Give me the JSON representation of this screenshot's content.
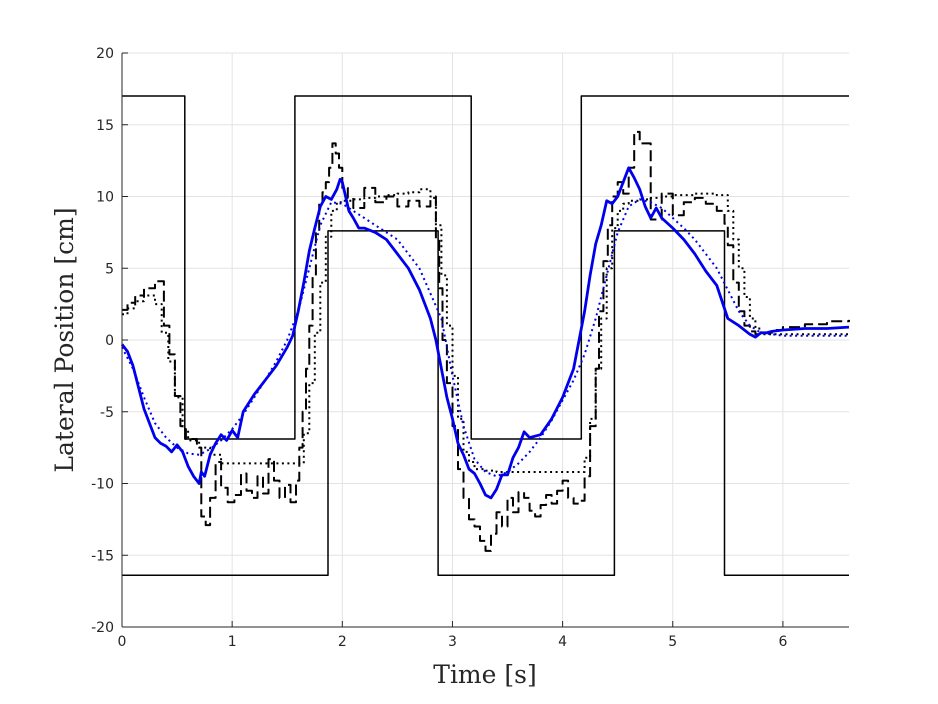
{
  "chart_data": {
    "type": "line",
    "title": "",
    "xlabel": "Time [s]",
    "ylabel": "Lateral Position [cm]",
    "xlim": [
      0,
      6.6
    ],
    "ylim": [
      -20,
      20
    ],
    "xticks": [
      0,
      1,
      2,
      3,
      4,
      5,
      6
    ],
    "yticks": [
      -20,
      -15,
      -10,
      -5,
      0,
      5,
      10,
      15,
      20
    ],
    "xtick_labels": [
      "0",
      "1",
      "2",
      "3",
      "4",
      "5",
      "6"
    ],
    "ytick_labels": [
      "-20",
      "-15",
      "-10",
      "-5",
      "0",
      "5",
      "10",
      "15",
      "20"
    ],
    "grid": true,
    "legend": "none",
    "series": [
      {
        "style": "solid",
        "color": "#000000",
        "width": 1.5,
        "step": true,
        "x": [
          0,
          0.57,
          0.57,
          1.57,
          1.57,
          3.17,
          3.17,
          4.17,
          4.17,
          6.6
        ],
        "y": [
          17,
          17,
          -6.9,
          -6.9,
          17,
          17,
          -6.9,
          -6.9,
          17,
          17
        ]
      },
      {
        "style": "solid",
        "color": "#000000",
        "width": 1.5,
        "step": true,
        "x": [
          0,
          1.87,
          1.87,
          2.87,
          2.87,
          4.47,
          4.47,
          5.47,
          5.47,
          6.6
        ],
        "y": [
          -16.4,
          -16.4,
          7.6,
          7.6,
          -16.4,
          -16.4,
          7.6,
          7.6,
          -16.4,
          -16.4
        ]
      },
      {
        "style": "dashed",
        "color": "#000000",
        "width": 2,
        "step": true,
        "x": [
          0,
          0.05,
          0.12,
          0.2,
          0.3,
          0.38,
          0.43,
          0.48,
          0.53,
          0.58,
          0.63,
          0.68,
          0.72,
          0.76,
          0.8,
          0.85,
          0.9,
          0.96,
          1.02,
          1.08,
          1.13,
          1.18,
          1.23,
          1.28,
          1.33,
          1.38,
          1.43,
          1.48,
          1.53,
          1.58,
          1.61,
          1.64,
          1.67,
          1.7,
          1.73,
          1.76,
          1.79,
          1.82,
          1.85,
          1.88,
          1.91,
          1.94,
          1.97,
          2.0,
          2.05,
          2.1,
          2.2,
          2.3,
          2.4,
          2.5,
          2.6,
          2.7,
          2.8,
          2.85,
          2.88,
          2.91,
          2.95,
          3.0,
          3.05,
          3.1,
          3.15,
          3.2,
          3.25,
          3.3,
          3.35,
          3.4,
          3.45,
          3.5,
          3.55,
          3.6,
          3.65,
          3.7,
          3.75,
          3.8,
          3.85,
          3.9,
          3.95,
          4.0,
          4.05,
          4.1,
          4.15,
          4.2,
          4.25,
          4.3,
          4.33,
          4.37,
          4.41,
          4.45,
          4.5,
          4.55,
          4.6,
          4.65,
          4.7,
          4.8,
          4.9,
          5.0,
          5.1,
          5.2,
          5.3,
          5.4,
          5.47,
          5.5,
          5.55,
          5.6,
          5.65,
          5.7,
          5.75,
          5.8,
          5.9,
          6.0,
          6.2,
          6.4,
          6.6
        ],
        "y": [
          2.1,
          2.6,
          3.1,
          3.6,
          4.1,
          1.0,
          -1.0,
          -3.9,
          -6.0,
          -6.9,
          -6.9,
          -7.5,
          -12.3,
          -12.9,
          -11.0,
          -8.5,
          -10.3,
          -11.3,
          -10.8,
          -9.3,
          -10.5,
          -11.0,
          -9.5,
          -10.7,
          -8.3,
          -9.8,
          -11.0,
          -10.1,
          -11.3,
          -9.8,
          -7.5,
          -5.0,
          -2.0,
          1.0,
          4.5,
          7.5,
          9.5,
          10.3,
          11.0,
          12.0,
          13.7,
          13.0,
          12.0,
          10.6,
          9.9,
          9.2,
          10.6,
          9.6,
          10.0,
          9.3,
          9.7,
          9.3,
          9.9,
          7.0,
          3.6,
          0.0,
          -3.0,
          -6.0,
          -9.0,
          -11.0,
          -12.5,
          -13.0,
          -14.0,
          -14.7,
          -13.5,
          -12.0,
          -13.0,
          -11.0,
          -12.0,
          -10.6,
          -11.0,
          -11.9,
          -12.3,
          -11.5,
          -10.8,
          -11.4,
          -10.5,
          -9.8,
          -11.0,
          -11.4,
          -11.2,
          -9.5,
          -6.0,
          -2.0,
          2.0,
          5.5,
          8.0,
          10.0,
          11.0,
          10.2,
          12.0,
          14.5,
          13.7,
          8.4,
          10.2,
          8.7,
          9.6,
          9.9,
          9.5,
          9.0,
          8.1,
          6.6,
          4.0,
          2.0,
          1.0,
          0.6,
          0.4,
          0.5,
          0.7,
          0.9,
          1.1,
          1.3,
          1.4
        ]
      },
      {
        "style": "dotted",
        "color": "#000000",
        "width": 2,
        "step": true,
        "x": [
          0,
          0.05,
          0.12,
          0.2,
          0.3,
          0.36,
          0.42,
          0.48,
          0.55,
          0.6,
          0.7,
          0.8,
          0.9,
          1.0,
          1.1,
          1.2,
          1.3,
          1.4,
          1.5,
          1.6,
          1.65,
          1.7,
          1.75,
          1.8,
          1.85,
          1.9,
          1.95,
          2.0,
          2.1,
          2.2,
          2.3,
          2.4,
          2.5,
          2.6,
          2.7,
          2.8,
          2.85,
          2.9,
          2.95,
          3.0,
          3.05,
          3.1,
          3.15,
          3.2,
          3.3,
          3.4,
          3.5,
          3.6,
          3.7,
          3.8,
          3.9,
          4.0,
          4.1,
          4.2,
          4.25,
          4.3,
          4.35,
          4.4,
          4.45,
          4.5,
          4.55,
          4.6,
          4.7,
          4.8,
          4.9,
          5.0,
          5.1,
          5.2,
          5.3,
          5.4,
          5.5,
          5.55,
          5.6,
          5.65,
          5.7,
          5.75,
          5.8,
          6.0,
          6.2,
          6.4,
          6.6
        ],
        "y": [
          1.8,
          2.2,
          2.7,
          3.1,
          2.5,
          0.5,
          -1.5,
          -4.0,
          -6.2,
          -7.0,
          -7.5,
          -8.0,
          -8.6,
          -8.6,
          -8.6,
          -8.6,
          -8.6,
          -8.6,
          -8.6,
          -8.6,
          -6.5,
          -3.0,
          0.5,
          4.0,
          7.2,
          9.0,
          9.6,
          9.7,
          9.8,
          9.9,
          10.0,
          10.1,
          10.2,
          10.3,
          10.5,
          10.0,
          8.0,
          4.5,
          1.0,
          -2.5,
          -5.5,
          -7.8,
          -8.5,
          -9.0,
          -9.1,
          -9.2,
          -9.2,
          -9.2,
          -9.2,
          -9.2,
          -9.2,
          -9.2,
          -9.2,
          -8.2,
          -5.5,
          -2.0,
          1.5,
          5.0,
          7.8,
          9.0,
          9.5,
          9.7,
          9.8,
          9.9,
          10.0,
          10.1,
          10.1,
          10.2,
          10.2,
          10.1,
          9.0,
          7.0,
          5.0,
          3.0,
          1.5,
          0.8,
          0.4,
          0.4,
          0.4,
          0.4,
          0.4
        ]
      },
      {
        "style": "solid",
        "color": "#0000ee",
        "width": 2.8,
        "step": false,
        "x": [
          0,
          0.05,
          0.1,
          0.15,
          0.2,
          0.25,
          0.3,
          0.35,
          0.4,
          0.45,
          0.5,
          0.55,
          0.6,
          0.65,
          0.7,
          0.72,
          0.75,
          0.8,
          0.85,
          0.9,
          0.95,
          1.0,
          1.05,
          1.1,
          1.2,
          1.3,
          1.4,
          1.5,
          1.55,
          1.6,
          1.65,
          1.7,
          1.75,
          1.8,
          1.85,
          1.9,
          1.95,
          1.98,
          2.0,
          2.03,
          2.06,
          2.1,
          2.15,
          2.2,
          2.3,
          2.4,
          2.5,
          2.6,
          2.7,
          2.8,
          2.85,
          2.9,
          2.95,
          3.0,
          3.05,
          3.1,
          3.15,
          3.2,
          3.25,
          3.3,
          3.35,
          3.4,
          3.45,
          3.5,
          3.55,
          3.6,
          3.65,
          3.7,
          3.8,
          3.9,
          4.0,
          4.1,
          4.15,
          4.2,
          4.25,
          4.3,
          4.35,
          4.4,
          4.45,
          4.5,
          4.55,
          4.6,
          4.65,
          4.7,
          4.75,
          4.8,
          4.85,
          4.9,
          5.0,
          5.1,
          5.2,
          5.3,
          5.4,
          5.5,
          5.6,
          5.7,
          5.75,
          5.8,
          5.85,
          5.9,
          6.0,
          6.2,
          6.4,
          6.6
        ],
        "y": [
          -0.3,
          -0.8,
          -1.8,
          -3.3,
          -4.8,
          -5.8,
          -6.8,
          -7.2,
          -7.4,
          -7.8,
          -7.3,
          -7.8,
          -8.8,
          -9.5,
          -10.0,
          -9.2,
          -9.5,
          -8.0,
          -7.2,
          -6.6,
          -7.0,
          -6.3,
          -6.8,
          -5.0,
          -3.8,
          -2.8,
          -1.8,
          -0.5,
          0.3,
          2.0,
          4.0,
          6.2,
          7.8,
          9.3,
          10.0,
          9.8,
          10.5,
          11.2,
          11.0,
          10.0,
          9.0,
          8.5,
          7.8,
          7.8,
          7.5,
          7.0,
          6.0,
          5.0,
          3.5,
          1.5,
          0.0,
          -2.0,
          -4.0,
          -5.5,
          -7.2,
          -8.0,
          -9.0,
          -9.3,
          -10.0,
          -10.8,
          -11.0,
          -10.4,
          -9.4,
          -9.4,
          -8.2,
          -7.5,
          -6.4,
          -6.8,
          -6.6,
          -5.5,
          -4.0,
          -2.0,
          0.0,
          2.0,
          4.5,
          6.7,
          8.0,
          9.7,
          9.5,
          10.0,
          11.0,
          12.0,
          11.3,
          10.5,
          9.3,
          8.5,
          9.2,
          8.5,
          7.8,
          7.0,
          6.0,
          4.8,
          3.8,
          1.5,
          1.0,
          0.4,
          0.2,
          0.5,
          0.5,
          0.6,
          0.7,
          0.8,
          0.8,
          0.9
        ]
      },
      {
        "style": "dotted",
        "color": "#0000ee",
        "width": 2,
        "step": false,
        "x": [
          0,
          0.1,
          0.2,
          0.3,
          0.4,
          0.5,
          0.6,
          0.7,
          0.8,
          0.9,
          1.0,
          1.1,
          1.2,
          1.3,
          1.4,
          1.5,
          1.6,
          1.7,
          1.8,
          1.9,
          2.0,
          2.1,
          2.2,
          2.3,
          2.5,
          2.7,
          2.9,
          3.0,
          3.1,
          3.2,
          3.3,
          3.4,
          3.5,
          3.6,
          3.7,
          3.8,
          3.9,
          4.0,
          4.1,
          4.2,
          4.3,
          4.4,
          4.5,
          4.6,
          4.7,
          4.8,
          4.9,
          5.0,
          5.1,
          5.2,
          5.3,
          5.4,
          5.5,
          5.6,
          5.7,
          5.8,
          6.0,
          6.2,
          6.4,
          6.6
        ],
        "y": [
          -0.5,
          -2.0,
          -4.0,
          -5.8,
          -6.8,
          -7.5,
          -7.9,
          -8.0,
          -7.6,
          -7.0,
          -6.2,
          -5.2,
          -4.0,
          -2.8,
          -1.5,
          0.0,
          2.0,
          5.0,
          8.0,
          9.6,
          9.5,
          9.0,
          8.5,
          8.0,
          7.0,
          5.0,
          1.5,
          -2.5,
          -6.0,
          -8.3,
          -9.2,
          -9.5,
          -9.2,
          -8.6,
          -7.8,
          -6.8,
          -5.6,
          -4.2,
          -2.8,
          -1.0,
          1.5,
          4.5,
          7.5,
          9.3,
          9.8,
          9.6,
          9.2,
          8.5,
          7.8,
          7.0,
          6.0,
          5.0,
          3.5,
          2.0,
          1.0,
          0.5,
          0.3,
          0.3,
          0.3,
          0.3
        ]
      }
    ]
  }
}
